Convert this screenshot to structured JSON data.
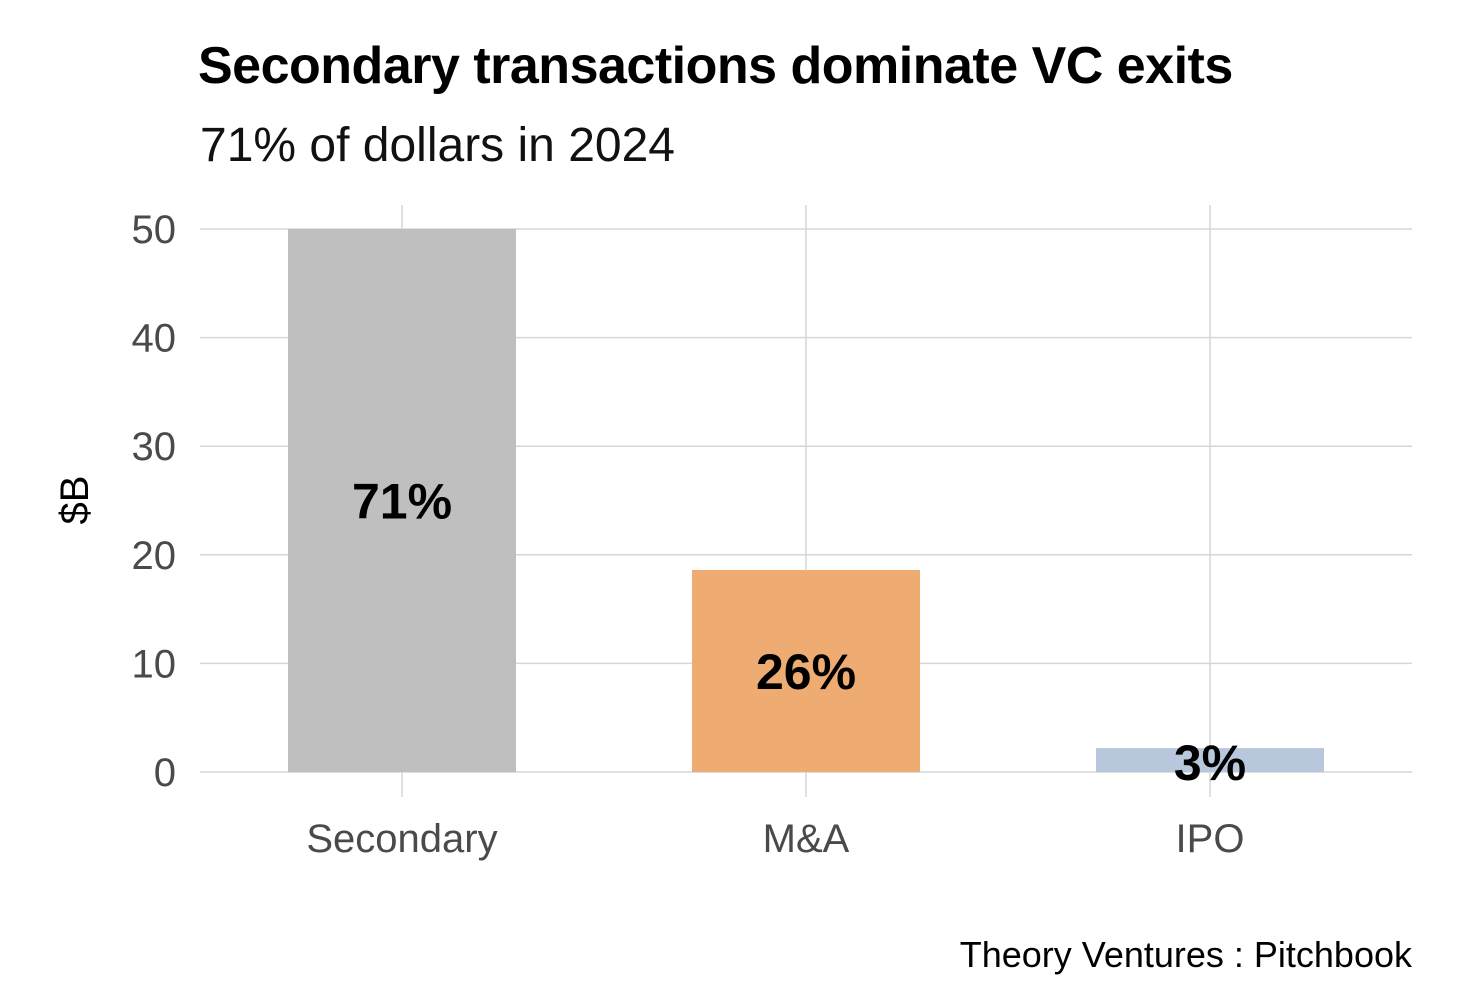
{
  "chart_data": {
    "type": "bar",
    "title": "Secondary transactions dominate VC exits",
    "subtitle": "71% of dollars in 2024",
    "ylabel": "$B",
    "xlabel": "",
    "categories": [
      "Secondary",
      "M&A",
      "IPO"
    ],
    "values": [
      50,
      18.6,
      2.2
    ],
    "data_labels": [
      "71%",
      "26%",
      "3%"
    ],
    "colors": [
      "#bfbfbf",
      "#eeab72",
      "#b8c7db"
    ],
    "ylim": [
      0,
      50
    ],
    "yticks": [
      "0",
      "10",
      "20",
      "30",
      "40",
      "50"
    ],
    "grid": true,
    "caption": "Theory Ventures : Pitchbook"
  }
}
